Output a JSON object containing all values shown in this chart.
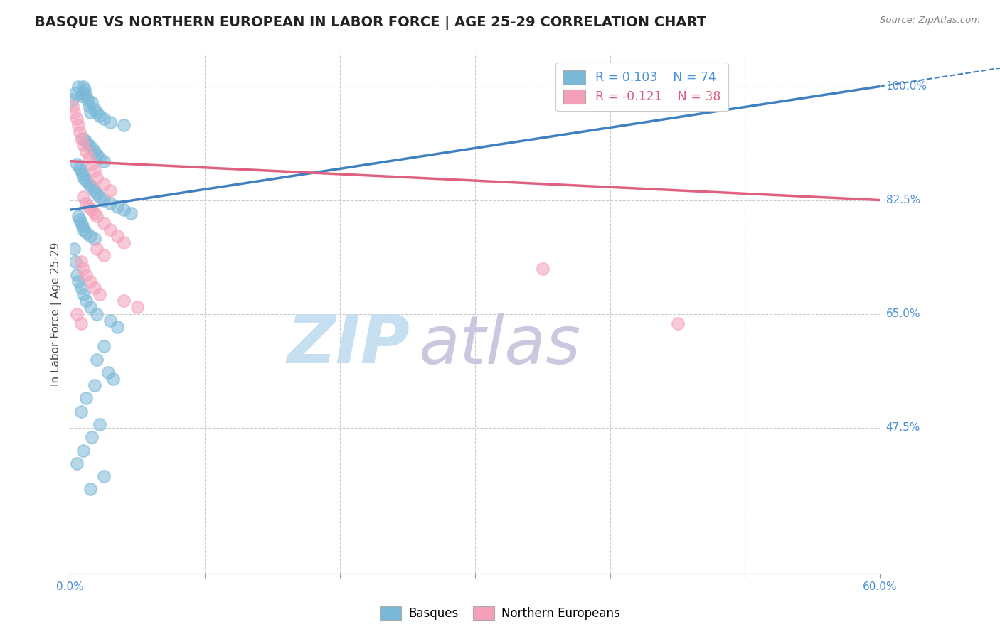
{
  "title": "BASQUE VS NORTHERN EUROPEAN IN LABOR FORCE | AGE 25-29 CORRELATION CHART",
  "source_text": "Source: ZipAtlas.com",
  "ylabel": "In Labor Force | Age 25-29",
  "xlim": [
    0.0,
    0.6
  ],
  "ylim": [
    0.25,
    1.05
  ],
  "xtick_labels": [
    "0.0%",
    "",
    "",
    "",
    "",
    "",
    "60.0%"
  ],
  "xtick_vals": [
    0.0,
    0.1,
    0.2,
    0.3,
    0.4,
    0.5,
    0.6
  ],
  "ytick_labels": [
    "100.0%",
    "82.5%",
    "65.0%",
    "47.5%"
  ],
  "ytick_vals": [
    1.0,
    0.825,
    0.65,
    0.475
  ],
  "grid_color": "#cccccc",
  "watermark_zip_color": "#b8d8e8",
  "watermark_atlas_color": "#c8b8d8",
  "legend_r1": "R = 0.103",
  "legend_n1": "N = 74",
  "legend_r2": "R = -0.121",
  "legend_n2": "N = 38",
  "blue_color": "#7ab8d8",
  "pink_color": "#f4a0b8",
  "blue_line_color": "#4080c0",
  "pink_line_color": "#e06080",
  "blue_trend_x0": 0.0,
  "blue_trend_y0": 0.81,
  "blue_trend_x1": 0.6,
  "blue_trend_y1": 1.0,
  "pink_trend_x0": 0.0,
  "pink_trend_y0": 0.885,
  "pink_trend_x1": 0.6,
  "pink_trend_y1": 0.825,
  "basque_x": [
    0.002,
    0.004,
    0.006,
    0.008,
    0.01,
    0.01,
    0.011,
    0.012,
    0.013,
    0.014,
    0.015,
    0.016,
    0.018,
    0.02,
    0.022,
    0.025,
    0.03,
    0.04,
    0.01,
    0.012,
    0.014,
    0.016,
    0.018,
    0.02,
    0.022,
    0.025,
    0.005,
    0.007,
    0.008,
    0.009,
    0.01,
    0.012,
    0.014,
    0.016,
    0.018,
    0.02,
    0.022,
    0.025,
    0.03,
    0.035,
    0.04,
    0.045,
    0.006,
    0.007,
    0.008,
    0.009,
    0.01,
    0.012,
    0.015,
    0.018,
    0.003,
    0.004,
    0.005,
    0.006,
    0.008,
    0.01,
    0.012,
    0.015,
    0.02,
    0.03,
    0.035,
    0.025,
    0.02,
    0.028,
    0.032,
    0.018,
    0.012,
    0.008,
    0.022,
    0.016,
    0.01,
    0.005,
    0.025,
    0.015
  ],
  "basque_y": [
    0.98,
    0.99,
    1.0,
    0.985,
    0.99,
    1.0,
    0.995,
    0.985,
    0.98,
    0.97,
    0.96,
    0.975,
    0.965,
    0.96,
    0.955,
    0.95,
    0.945,
    0.94,
    0.92,
    0.915,
    0.91,
    0.905,
    0.9,
    0.895,
    0.89,
    0.885,
    0.88,
    0.875,
    0.87,
    0.865,
    0.86,
    0.855,
    0.85,
    0.845,
    0.84,
    0.835,
    0.83,
    0.825,
    0.82,
    0.815,
    0.81,
    0.805,
    0.8,
    0.795,
    0.79,
    0.785,
    0.78,
    0.775,
    0.77,
    0.765,
    0.75,
    0.73,
    0.71,
    0.7,
    0.69,
    0.68,
    0.67,
    0.66,
    0.65,
    0.64,
    0.63,
    0.6,
    0.58,
    0.56,
    0.55,
    0.54,
    0.52,
    0.5,
    0.48,
    0.46,
    0.44,
    0.42,
    0.4,
    0.38
  ],
  "northern_x": [
    0.002,
    0.003,
    0.005,
    0.006,
    0.007,
    0.008,
    0.01,
    0.012,
    0.014,
    0.016,
    0.018,
    0.02,
    0.025,
    0.03,
    0.01,
    0.012,
    0.014,
    0.016,
    0.018,
    0.02,
    0.025,
    0.03,
    0.035,
    0.04,
    0.02,
    0.025,
    0.008,
    0.01,
    0.012,
    0.015,
    0.018,
    0.022,
    0.04,
    0.05,
    0.005,
    0.008,
    0.45,
    0.35
  ],
  "northern_y": [
    0.97,
    0.96,
    0.95,
    0.94,
    0.93,
    0.92,
    0.91,
    0.9,
    0.89,
    0.88,
    0.87,
    0.86,
    0.85,
    0.84,
    0.83,
    0.82,
    0.815,
    0.81,
    0.805,
    0.8,
    0.79,
    0.78,
    0.77,
    0.76,
    0.75,
    0.74,
    0.73,
    0.72,
    0.71,
    0.7,
    0.69,
    0.68,
    0.67,
    0.66,
    0.65,
    0.635,
    0.635,
    0.72
  ]
}
